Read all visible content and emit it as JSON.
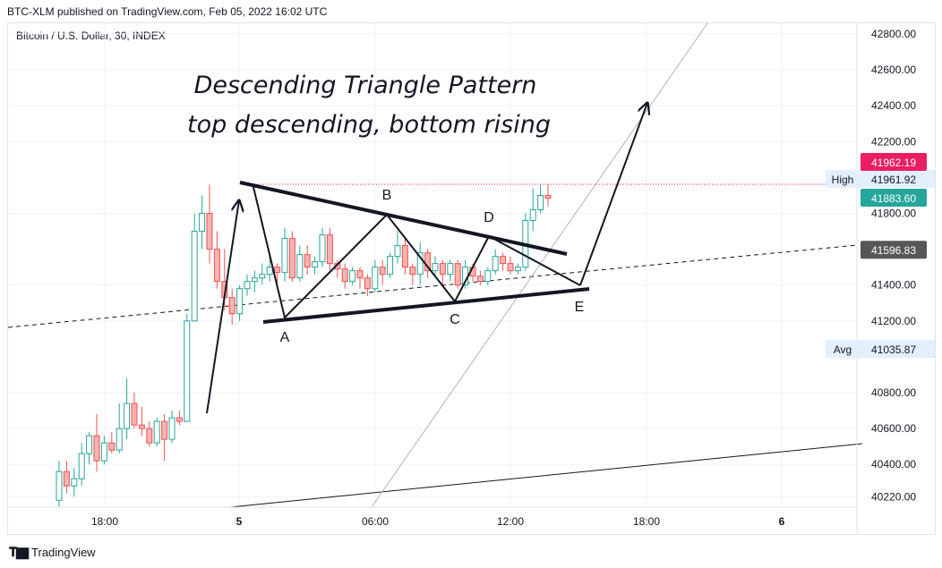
{
  "header": {
    "published": "BTC-XLM published on TradingView.com, Feb 05, 2022 16:02 UTC",
    "symbol": "Bitcoin / U.S. Dollar, 30, INDEX"
  },
  "footer": {
    "brand": "TradingView"
  },
  "colors": {
    "up": "#26a69a",
    "down": "#ef5350",
    "up_fill": "#ffffff",
    "down_fill": "#f6b3b1",
    "high_badge": "#e91e63",
    "last_badge": "#26a69a",
    "level_badge": "#575757"
  },
  "chart_data": {
    "type": "candlestick",
    "title": "Descending Triangle Pattern",
    "subtitle": "top descending, bottom rising",
    "x_ticks": [
      "18:00",
      "5",
      "06:00",
      "12:00",
      "18:00",
      "6"
    ],
    "y_ticks": [
      "42800.00",
      "42600.00",
      "42400.00",
      "42200.00",
      "41800.00",
      "41400.00",
      "41200.00",
      "40800.00",
      "40600.00",
      "40400.00",
      "40220.00"
    ],
    "ylim": [
      40180,
      42880
    ],
    "price_labels": [
      {
        "text": "High",
        "value": "41961.92",
        "kind": "tag"
      },
      {
        "text": "",
        "value": "41962.19",
        "kind": "high"
      },
      {
        "text": "",
        "value": "41883.60",
        "kind": "last"
      },
      {
        "text": "",
        "value": "41596.83",
        "kind": "level"
      },
      {
        "text": "Avg",
        "value": "41035.87",
        "kind": "tag"
      }
    ],
    "point_labels": [
      "A",
      "B",
      "C",
      "D",
      "E"
    ],
    "candles": [
      [
        40200,
        40360,
        40160,
        40420
      ],
      [
        40360,
        40280,
        40240,
        40420
      ],
      [
        40280,
        40320,
        40220,
        40380
      ],
      [
        40320,
        40460,
        40280,
        40520
      ],
      [
        40460,
        40560,
        40400,
        40580
      ],
      [
        40560,
        40420,
        40360,
        40680
      ],
      [
        40420,
        40520,
        40400,
        40560
      ],
      [
        40520,
        40480,
        40460,
        40580
      ],
      [
        40480,
        40600,
        40460,
        40740
      ],
      [
        40600,
        40740,
        40540,
        40880
      ],
      [
        40740,
        40620,
        40600,
        40800
      ],
      [
        40620,
        40600,
        40560,
        40720
      ],
      [
        40600,
        40520,
        40500,
        40640
      ],
      [
        40520,
        40640,
        40500,
        40660
      ],
      [
        40640,
        40540,
        40420,
        40680
      ],
      [
        40540,
        40660,
        40520,
        40700
      ],
      [
        40660,
        40640,
        40620,
        40700
      ],
      [
        40640,
        41200,
        40640,
        41240
      ],
      [
        41200,
        41700,
        41200,
        41800
      ],
      [
        41700,
        41800,
        41600,
        41900
      ],
      [
        41800,
        41600,
        41520,
        41960
      ],
      [
        41600,
        41420,
        41380,
        41700
      ],
      [
        41420,
        41330,
        41260,
        41600
      ],
      [
        41330,
        41240,
        41180,
        41380
      ],
      [
        41240,
        41380,
        41200,
        41400
      ],
      [
        41380,
        41420,
        41340,
        41460
      ],
      [
        41420,
        41440,
        41360,
        41480
      ],
      [
        41440,
        41460,
        41400,
        41520
      ],
      [
        41460,
        41500,
        41420,
        41560
      ],
      [
        41500,
        41470,
        41400,
        41520
      ],
      [
        41470,
        41660,
        41420,
        41720
      ],
      [
        41660,
        41440,
        41420,
        41700
      ],
      [
        41440,
        41570,
        41420,
        41620
      ],
      [
        41570,
        41500,
        41460,
        41620
      ],
      [
        41500,
        41530,
        41460,
        41560
      ],
      [
        41530,
        41680,
        41500,
        41720
      ],
      [
        41680,
        41520,
        41480,
        41720
      ],
      [
        41520,
        41490,
        41440,
        41540
      ],
      [
        41490,
        41420,
        41380,
        41520
      ],
      [
        41420,
        41480,
        41400,
        41500
      ],
      [
        41480,
        41440,
        41380,
        41500
      ],
      [
        41440,
        41380,
        41340,
        41460
      ],
      [
        41380,
        41500,
        41360,
        41540
      ],
      [
        41500,
        41460,
        41400,
        41540
      ],
      [
        41460,
        41560,
        41440,
        41580
      ],
      [
        41560,
        41620,
        41520,
        41700
      ],
      [
        41620,
        41500,
        41460,
        41660
      ],
      [
        41500,
        41460,
        41400,
        41520
      ],
      [
        41460,
        41580,
        41400,
        41640
      ],
      [
        41580,
        41480,
        41440,
        41600
      ],
      [
        41480,
        41520,
        41440,
        41560
      ],
      [
        41520,
        41460,
        41400,
        41540
      ],
      [
        41460,
        41520,
        41420,
        41540
      ],
      [
        41520,
        41400,
        41380,
        41540
      ],
      [
        41400,
        41500,
        41380,
        41540
      ],
      [
        41500,
        41450,
        41420,
        41520
      ],
      [
        41450,
        41420,
        41400,
        41480
      ],
      [
        41420,
        41480,
        41400,
        41500
      ],
      [
        41480,
        41560,
        41460,
        41600
      ],
      [
        41560,
        41520,
        41480,
        41580
      ],
      [
        41520,
        41480,
        41460,
        41560
      ],
      [
        41480,
        41500,
        41460,
        41520
      ],
      [
        41500,
        41760,
        41480,
        41800
      ],
      [
        41760,
        41820,
        41700,
        41940
      ],
      [
        41820,
        41900,
        41800,
        41960
      ],
      [
        41900,
        41884,
        41840,
        41960
      ]
    ]
  }
}
